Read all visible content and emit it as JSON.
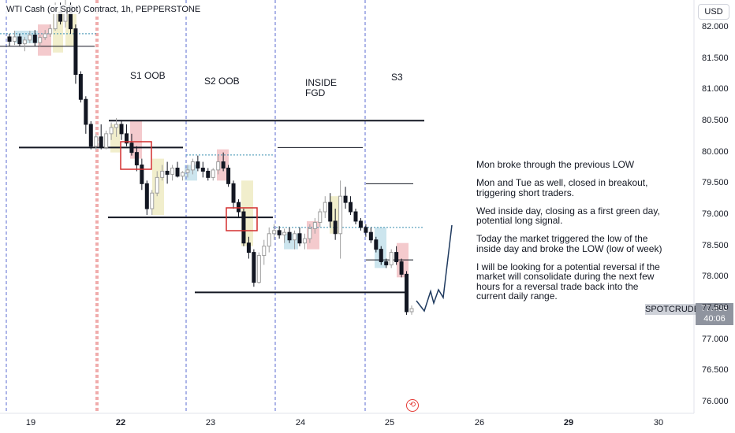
{
  "header": {
    "title": "WTI Cash (or Spot) Contract, 1h, PEPPERSTONE",
    "currency_button": "USD"
  },
  "chart_data": {
    "type": "candlestick",
    "symbol": "SPOTCRUDE",
    "last_price": "77.496",
    "countdown": "40:06",
    "y_range": [
      75.8,
      82.3
    ],
    "y_ticks": [
      "82.000",
      "81.500",
      "81.000",
      "80.500",
      "80.000",
      "79.500",
      "79.000",
      "78.500",
      "78.000",
      "77.500",
      "77.000",
      "76.500",
      "76.000"
    ],
    "x_ticks": [
      {
        "label": "19",
        "bold": false
      },
      {
        "label": "22",
        "bold": true
      },
      {
        "label": "23",
        "bold": false
      },
      {
        "label": "24",
        "bold": false
      },
      {
        "label": "25",
        "bold": false
      },
      {
        "label": "26",
        "bold": false
      },
      {
        "label": "29",
        "bold": true
      },
      {
        "label": "30",
        "bold": false
      }
    ],
    "session_labels": [
      "S1 OOB",
      "S2 OOB",
      "INSIDE\nFGD",
      "S3"
    ],
    "levels": [
      80.51,
      80.08,
      79.96,
      79.36,
      79.5,
      78.96,
      78.8,
      78.28,
      77.76
    ],
    "colors": {
      "up": "#9e9e9e",
      "down": "#131722",
      "session_line": "#5b6bd0",
      "daily_divider": "#e05a5a",
      "zone_red": "#f3c4c8",
      "zone_blue": "#c6e2ec",
      "zone_yellow": "#f0ecc7",
      "box_red": "#d32f2f",
      "projection": "#1f3a5f",
      "level": "#131722"
    },
    "candles": [
      [
        81.85,
        81.9,
        81.7,
        81.78
      ],
      [
        81.78,
        81.95,
        81.72,
        81.85
      ],
      [
        81.85,
        81.9,
        81.7,
        81.74
      ],
      [
        81.74,
        81.85,
        81.62,
        81.8
      ],
      [
        81.8,
        81.95,
        81.75,
        81.88
      ],
      [
        81.88,
        81.96,
        81.7,
        81.76
      ],
      [
        81.76,
        81.88,
        81.7,
        81.84
      ],
      [
        81.84,
        81.96,
        81.8,
        81.9
      ],
      [
        81.9,
        82.05,
        81.85,
        81.98
      ],
      [
        81.98,
        82.4,
        81.95,
        82.25
      ],
      [
        82.25,
        82.4,
        82.05,
        82.1
      ],
      [
        82.1,
        82.45,
        82.0,
        82.35
      ],
      [
        82.35,
        82.4,
        81.9,
        81.98
      ],
      [
        81.98,
        82.05,
        81.1,
        81.25
      ],
      [
        81.25,
        81.3,
        80.8,
        80.85
      ],
      [
        80.85,
        80.9,
        80.3,
        80.45
      ],
      [
        80.45,
        80.5,
        80.05,
        80.1
      ],
      [
        80.1,
        80.3,
        80.04,
        80.25
      ],
      [
        80.25,
        80.45,
        80.05,
        80.08
      ],
      [
        80.08,
        80.35,
        80.05,
        80.3
      ],
      [
        80.3,
        80.48,
        80.2,
        80.4
      ],
      [
        80.4,
        80.55,
        80.25,
        80.45
      ],
      [
        80.45,
        80.52,
        80.2,
        80.3
      ],
      [
        80.3,
        80.45,
        80.1,
        80.15
      ],
      [
        80.15,
        80.3,
        79.95,
        80.0
      ],
      [
        80.0,
        80.1,
        79.7,
        79.8
      ],
      [
        79.8,
        79.9,
        79.4,
        79.5
      ],
      [
        79.5,
        79.55,
        79.0,
        79.1
      ],
      [
        79.1,
        79.4,
        79.0,
        79.35
      ],
      [
        79.35,
        79.7,
        79.3,
        79.6
      ],
      [
        79.6,
        79.8,
        79.55,
        79.7
      ],
      [
        79.7,
        79.85,
        79.5,
        79.65
      ],
      [
        79.65,
        79.8,
        79.55,
        79.75
      ],
      [
        79.75,
        79.85,
        79.6,
        79.62
      ],
      [
        79.62,
        79.7,
        79.55,
        79.68
      ],
      [
        79.68,
        79.8,
        79.6,
        79.72
      ],
      [
        79.72,
        79.9,
        79.65,
        79.85
      ],
      [
        79.85,
        79.95,
        79.7,
        79.75
      ],
      [
        79.75,
        79.85,
        79.6,
        79.7
      ],
      [
        79.7,
        79.75,
        79.55,
        79.6
      ],
      [
        79.6,
        79.75,
        79.55,
        79.72
      ],
      [
        79.72,
        79.95,
        79.65,
        79.85
      ],
      [
        79.85,
        80.0,
        79.7,
        79.75
      ],
      [
        79.75,
        79.8,
        79.45,
        79.5
      ],
      [
        79.5,
        79.55,
        79.1,
        79.2
      ],
      [
        79.2,
        79.25,
        78.95,
        79.05
      ],
      [
        79.05,
        79.1,
        78.5,
        78.55
      ],
      [
        78.55,
        78.65,
        78.3,
        78.4
      ],
      [
        78.4,
        78.45,
        77.85,
        77.92
      ],
      [
        77.92,
        78.4,
        77.9,
        78.35
      ],
      [
        78.35,
        78.6,
        78.2,
        78.5
      ],
      [
        78.5,
        78.8,
        78.4,
        78.7
      ],
      [
        78.7,
        78.85,
        78.6,
        78.75
      ],
      [
        78.75,
        78.82,
        78.62,
        78.68
      ],
      [
        78.68,
        78.78,
        78.55,
        78.72
      ],
      [
        78.72,
        78.8,
        78.55,
        78.6
      ],
      [
        78.6,
        78.75,
        78.45,
        78.7
      ],
      [
        78.7,
        78.8,
        78.5,
        78.55
      ],
      [
        78.55,
        78.7,
        78.45,
        78.62
      ],
      [
        78.62,
        78.85,
        78.55,
        78.78
      ],
      [
        78.78,
        78.95,
        78.7,
        78.88
      ],
      [
        78.88,
        79.1,
        78.8,
        79.05
      ],
      [
        79.05,
        79.3,
        78.95,
        79.2
      ],
      [
        79.2,
        79.35,
        78.8,
        78.9
      ],
      [
        78.9,
        79.1,
        78.6,
        78.7
      ],
      [
        78.7,
        79.55,
        78.3,
        79.3
      ],
      [
        79.3,
        79.45,
        79.1,
        79.2
      ],
      [
        79.2,
        79.3,
        79.0,
        79.05
      ],
      [
        79.05,
        79.1,
        78.85,
        78.9
      ],
      [
        78.9,
        78.95,
        78.75,
        78.8
      ],
      [
        78.8,
        78.85,
        78.65,
        78.72
      ],
      [
        78.72,
        78.8,
        78.55,
        78.6
      ],
      [
        78.6,
        78.65,
        78.4,
        78.45
      ],
      [
        78.45,
        78.5,
        78.2,
        78.25
      ],
      [
        78.25,
        78.3,
        78.15,
        78.2
      ],
      [
        78.2,
        78.45,
        78.15,
        78.4
      ],
      [
        78.4,
        78.5,
        78.2,
        78.25
      ],
      [
        78.25,
        78.3,
        78.0,
        78.05
      ],
      [
        78.05,
        78.1,
        77.4,
        77.45
      ],
      [
        77.45,
        77.55,
        77.4,
        77.5
      ]
    ],
    "notes": [
      "Mon broke through the previous LOW",
      "Mon and Tue as well, closed in breakout, triggering short traders.",
      "Wed inside day, closing as a first green day, potential long signal.",
      "Today the market triggered the low of the inside day and broke the LOW (low of week)",
      "I will be looking for a potential reversal if the market will consolidate during the next few hours for a reversal trade back into the current daily range."
    ]
  }
}
